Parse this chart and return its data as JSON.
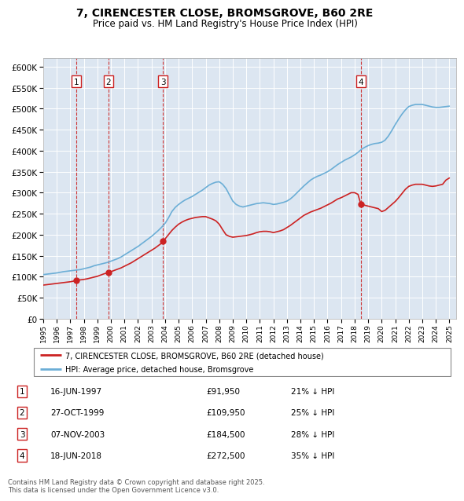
{
  "title": "7, CIRENCESTER CLOSE, BROMSGROVE, B60 2RE",
  "subtitle": "Price paid vs. HM Land Registry's House Price Index (HPI)",
  "ylim": [
    0,
    620000
  ],
  "yticks": [
    0,
    50000,
    100000,
    150000,
    200000,
    250000,
    300000,
    350000,
    400000,
    450000,
    500000,
    550000,
    600000
  ],
  "background_color": "#dce6f1",
  "grid_color": "#ffffff",
  "sale_dates": [
    1997.46,
    1999.82,
    2003.85,
    2018.46
  ],
  "sale_prices": [
    91950,
    109950,
    184500,
    272500
  ],
  "sale_labels": [
    "1",
    "2",
    "3",
    "4"
  ],
  "legend_sale": "7, CIRENCESTER CLOSE, BROMSGROVE, B60 2RE (detached house)",
  "legend_hpi": "HPI: Average price, detached house, Bromsgrove",
  "footer": "Contains HM Land Registry data © Crown copyright and database right 2025.\nThis data is licensed under the Open Government Licence v3.0.",
  "table_entries": [
    {
      "label": "1",
      "date": "16-JUN-1997",
      "price": "£91,950",
      "hpi": "21% ↓ HPI"
    },
    {
      "label": "2",
      "date": "27-OCT-1999",
      "price": "£109,950",
      "hpi": "25% ↓ HPI"
    },
    {
      "label": "3",
      "date": "07-NOV-2003",
      "price": "£184,500",
      "hpi": "28% ↓ HPI"
    },
    {
      "label": "4",
      "date": "18-JUN-2018",
      "price": "£272,500",
      "hpi": "35% ↓ HPI"
    }
  ],
  "red_line_color": "#cc2222",
  "blue_line_color": "#6baed6",
  "dashed_line_color": "#cc2222",
  "box_edge_color": "#cc2222",
  "hpi_x": [
    1995.0,
    1995.25,
    1995.5,
    1995.75,
    1996.0,
    1996.25,
    1996.5,
    1996.75,
    1997.0,
    1997.25,
    1997.5,
    1997.75,
    1998.0,
    1998.25,
    1998.5,
    1998.75,
    1999.0,
    1999.25,
    1999.5,
    1999.75,
    2000.0,
    2000.25,
    2000.5,
    2000.75,
    2001.0,
    2001.25,
    2001.5,
    2001.75,
    2002.0,
    2002.25,
    2002.5,
    2002.75,
    2003.0,
    2003.25,
    2003.5,
    2003.75,
    2004.0,
    2004.25,
    2004.5,
    2004.75,
    2005.0,
    2005.25,
    2005.5,
    2005.75,
    2006.0,
    2006.25,
    2006.5,
    2006.75,
    2007.0,
    2007.25,
    2007.5,
    2007.75,
    2008.0,
    2008.25,
    2008.5,
    2008.75,
    2009.0,
    2009.25,
    2009.5,
    2009.75,
    2010.0,
    2010.25,
    2010.5,
    2010.75,
    2011.0,
    2011.25,
    2011.5,
    2011.75,
    2012.0,
    2012.25,
    2012.5,
    2012.75,
    2013.0,
    2013.25,
    2013.5,
    2013.75,
    2014.0,
    2014.25,
    2014.5,
    2014.75,
    2015.0,
    2015.25,
    2015.5,
    2015.75,
    2016.0,
    2016.25,
    2016.5,
    2016.75,
    2017.0,
    2017.25,
    2017.5,
    2017.75,
    2018.0,
    2018.25,
    2018.5,
    2018.75,
    2019.0,
    2019.25,
    2019.5,
    2019.75,
    2020.0,
    2020.25,
    2020.5,
    2020.75,
    2021.0,
    2021.25,
    2021.5,
    2021.75,
    2022.0,
    2022.25,
    2022.5,
    2022.75,
    2023.0,
    2023.25,
    2023.5,
    2023.75,
    2024.0,
    2024.25,
    2024.5,
    2024.75,
    2025.0
  ],
  "hpi_y": [
    105000,
    106000,
    107000,
    108000,
    109000,
    110500,
    112000,
    113000,
    114000,
    115000,
    116000,
    117000,
    119000,
    121000,
    123000,
    126000,
    128000,
    130000,
    132000,
    134000,
    137000,
    140000,
    143000,
    147000,
    152000,
    157000,
    162000,
    167000,
    172000,
    178000,
    184000,
    190000,
    196000,
    203000,
    210000,
    218000,
    227000,
    240000,
    255000,
    265000,
    272000,
    278000,
    283000,
    287000,
    291000,
    296000,
    301000,
    306000,
    312000,
    318000,
    322000,
    325000,
    326000,
    320000,
    310000,
    295000,
    280000,
    272000,
    268000,
    266000,
    268000,
    270000,
    272000,
    274000,
    275000,
    276000,
    275000,
    274000,
    272000,
    273000,
    275000,
    277000,
    280000,
    285000,
    292000,
    300000,
    308000,
    316000,
    323000,
    330000,
    335000,
    339000,
    342000,
    346000,
    350000,
    355000,
    361000,
    367000,
    372000,
    377000,
    381000,
    385000,
    390000,
    396000,
    403000,
    408000,
    412000,
    415000,
    417000,
    418000,
    420000,
    425000,
    435000,
    448000,
    462000,
    475000,
    487000,
    497000,
    505000,
    508000,
    510000,
    510000,
    510000,
    508000,
    506000,
    504000,
    503000,
    503000,
    504000,
    505000,
    506000
  ],
  "red_x": [
    1995.0,
    1995.25,
    1995.5,
    1995.75,
    1996.0,
    1996.25,
    1996.5,
    1996.75,
    1997.0,
    1997.25,
    1997.46,
    1997.75,
    1998.0,
    1998.25,
    1998.5,
    1998.75,
    1999.0,
    1999.25,
    1999.5,
    1999.75,
    1999.82,
    2000.0,
    2000.25,
    2000.5,
    2000.75,
    2001.0,
    2001.25,
    2001.5,
    2001.75,
    2002.0,
    2002.25,
    2002.5,
    2002.75,
    2003.0,
    2003.25,
    2003.5,
    2003.75,
    2003.85,
    2004.0,
    2004.25,
    2004.5,
    2004.75,
    2005.0,
    2005.25,
    2005.5,
    2005.75,
    2006.0,
    2006.25,
    2006.5,
    2006.75,
    2007.0,
    2007.25,
    2007.5,
    2007.75,
    2008.0,
    2008.25,
    2008.5,
    2008.75,
    2009.0,
    2009.25,
    2009.5,
    2009.75,
    2010.0,
    2010.25,
    2010.5,
    2010.75,
    2011.0,
    2011.25,
    2011.5,
    2011.75,
    2012.0,
    2012.25,
    2012.5,
    2012.75,
    2013.0,
    2013.25,
    2013.5,
    2013.75,
    2014.0,
    2014.25,
    2014.5,
    2014.75,
    2015.0,
    2015.25,
    2015.5,
    2015.75,
    2016.0,
    2016.25,
    2016.5,
    2016.75,
    2017.0,
    2017.25,
    2017.5,
    2017.75,
    2018.0,
    2018.25,
    2018.46,
    2018.75,
    2019.0,
    2019.25,
    2019.5,
    2019.75,
    2020.0,
    2020.25,
    2020.5,
    2020.75,
    2021.0,
    2021.25,
    2021.5,
    2021.75,
    2022.0,
    2022.25,
    2022.5,
    2022.75,
    2023.0,
    2023.25,
    2023.5,
    2023.75,
    2024.0,
    2024.25,
    2024.5,
    2024.75,
    2025.0
  ],
  "red_y": [
    80000,
    81000,
    82000,
    83000,
    84000,
    85000,
    86000,
    87000,
    88000,
    89500,
    91950,
    92500,
    93500,
    95000,
    97000,
    99000,
    101000,
    104000,
    107000,
    109000,
    109950,
    112000,
    115000,
    118000,
    121000,
    125000,
    129000,
    133000,
    138000,
    143000,
    148000,
    153000,
    158000,
    163000,
    168000,
    174000,
    180000,
    184500,
    190000,
    200000,
    210000,
    218000,
    225000,
    230000,
    234000,
    237000,
    239000,
    241000,
    242000,
    243000,
    243000,
    240000,
    237000,
    233000,
    225000,
    212000,
    200000,
    196000,
    194000,
    195000,
    196000,
    197000,
    198000,
    200000,
    202000,
    205000,
    207000,
    208000,
    208000,
    207000,
    205000,
    207000,
    209000,
    212000,
    217000,
    222000,
    228000,
    234000,
    240000,
    246000,
    250000,
    254000,
    257000,
    260000,
    263000,
    267000,
    271000,
    275000,
    280000,
    285000,
    288000,
    292000,
    296000,
    300000,
    300000,
    296000,
    272500,
    270000,
    268000,
    266000,
    264000,
    262000,
    255000,
    258000,
    265000,
    272000,
    279000,
    288000,
    298000,
    308000,
    315000,
    318000,
    320000,
    320000,
    320000,
    318000,
    316000,
    315000,
    316000,
    318000,
    320000,
    330000,
    335000
  ]
}
